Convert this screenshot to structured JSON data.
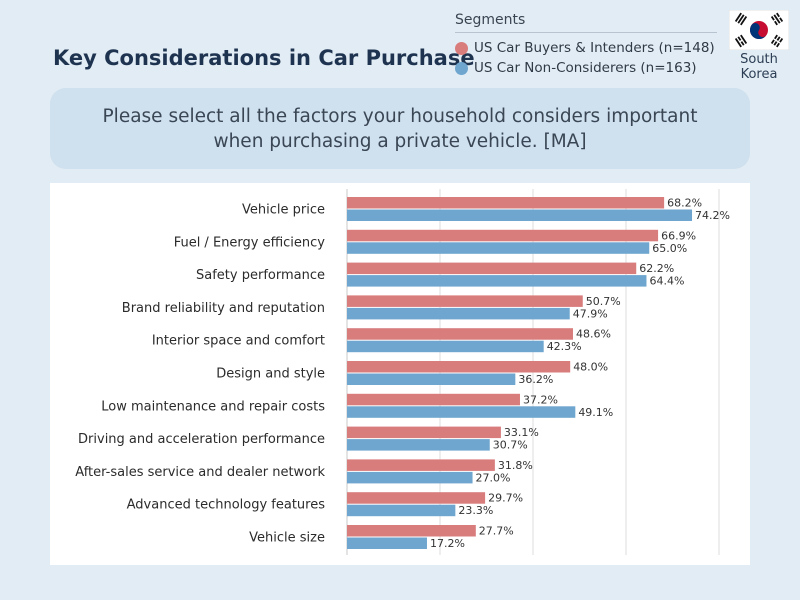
{
  "title": "Key Considerations in Car Purchase",
  "legend": {
    "title": "Segments",
    "items": [
      {
        "label": "US Car Buyers & Intenders (n=148)",
        "color": "#d97c7c"
      },
      {
        "label": "US Car Non-Considerers (n=163)",
        "color": "#6fa6cf"
      }
    ]
  },
  "country": {
    "name": "South Korea",
    "flag_icon": "south-korea-flag-icon"
  },
  "question": "Please select all the factors your household considers important when purchasing a private vehicle. [MA]",
  "chart_data": {
    "type": "bar",
    "orientation": "horizontal",
    "categories": [
      "Vehicle price",
      "Fuel / Energy efficiency",
      "Safety performance",
      "Brand reliability and reputation",
      "Interior space and comfort",
      "Design and style",
      "Low maintenance and repair costs",
      "Driving and acceleration performance",
      "After-sales service and dealer network",
      "Advanced technology features",
      "Vehicle size"
    ],
    "series": [
      {
        "name": "US Car Buyers & Intenders (n=148)",
        "color": "#d97c7c",
        "values": [
          68.2,
          66.9,
          62.2,
          50.7,
          48.6,
          48.0,
          37.2,
          33.1,
          31.8,
          29.7,
          27.7
        ]
      },
      {
        "name": "US Car Non-Considerers (n=163)",
        "color": "#6fa6cf",
        "values": [
          74.2,
          65.0,
          64.4,
          47.9,
          42.3,
          36.2,
          49.1,
          30.7,
          27.0,
          23.3,
          17.2
        ]
      }
    ],
    "value_suffix": "%",
    "xlim": [
      0,
      80
    ],
    "gridlines": [
      20,
      40,
      60,
      80
    ],
    "grid": true,
    "legend_position": "top-right"
  }
}
